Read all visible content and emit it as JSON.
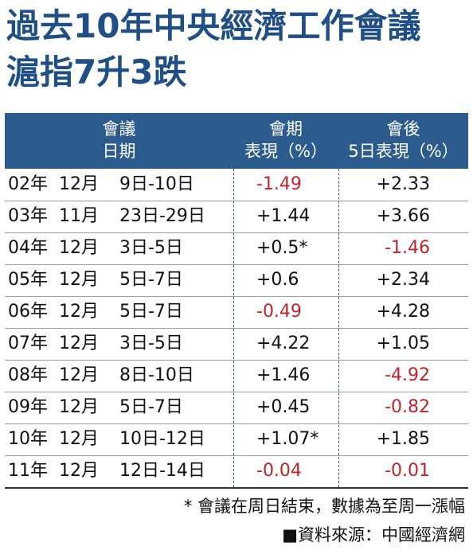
{
  "header": {
    "title_lines": [
      "過去10年中央經濟工作會議",
      "滬指7升3跌"
    ]
  },
  "table": {
    "columns": [
      [
        "會議",
        "日期"
      ],
      [
        "會期",
        "表現（%）"
      ],
      [
        "會後",
        "5日表現（%）"
      ]
    ],
    "rows": [
      [
        "02年",
        "12月",
        "9日-10日",
        "-1.49",
        "+2.33"
      ],
      [
        "03年",
        "11月",
        "23日-29日",
        "+1.44",
        "+3.66"
      ],
      [
        "04年",
        "12月",
        "3日-5日",
        "+0.5*",
        "-1.46"
      ],
      [
        "05年",
        "12月",
        "5日-7日",
        "+0.6",
        "+2.34"
      ],
      [
        "06年",
        "12月",
        "5日-7日",
        "-0.49",
        "+4.28"
      ],
      [
        "07年",
        "12月",
        "3日-5日",
        "+4.22",
        "+1.05"
      ],
      [
        "08年",
        "12月",
        "8日-10日",
        "+1.46",
        "-4.92"
      ],
      [
        "09年",
        "12月",
        "5日-7日",
        "+0.45",
        "-0.82"
      ],
      [
        "10年",
        "12月",
        "10日-12日",
        "+1.07*",
        "+1.85"
      ],
      [
        "11年",
        "12月",
        "12日-14日",
        "-0.04",
        "-0.01"
      ]
    ]
  },
  "footer": {
    "note": "* 會議在周日結束，數據為至周一漲幅",
    "source": "■資料來源：中國經濟網"
  }
}
